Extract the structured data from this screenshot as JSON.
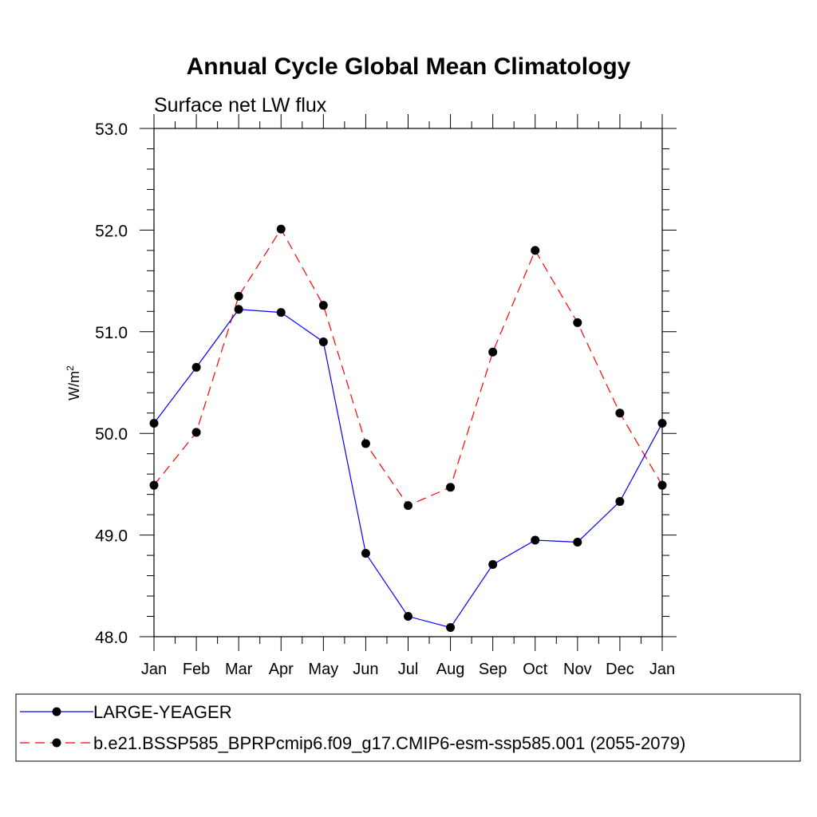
{
  "chart_data": {
    "type": "line",
    "title": "Annual Cycle Global Mean Climatology",
    "subtitle": "Surface net LW flux",
    "ylabel": "W/m",
    "ylabel_superscript": "2",
    "ylim": [
      48.0,
      53.0
    ],
    "yticks": [
      "48.0",
      "49.0",
      "50.0",
      "51.0",
      "52.0",
      "53.0"
    ],
    "categories": [
      "Jan",
      "Feb",
      "Mar",
      "Apr",
      "May",
      "Jun",
      "Jul",
      "Aug",
      "Sep",
      "Oct",
      "Nov",
      "Dec",
      "Jan"
    ],
    "series": [
      {
        "name": "LARGE-YEAGER",
        "color": "#0000ff",
        "dash": "solid",
        "values": [
          50.1,
          50.65,
          51.22,
          51.19,
          50.9,
          48.82,
          48.2,
          48.09,
          48.71,
          48.95,
          48.93,
          49.33,
          50.1
        ]
      },
      {
        "name": "b.e21.BSSP585_BPRPcmip6.f09_g17.CMIP6-esm-ssp585.001 (2055-2079)",
        "color": "#ff0000",
        "dash": "dashed",
        "values": [
          49.49,
          50.01,
          51.35,
          52.01,
          51.26,
          49.9,
          49.29,
          49.47,
          50.8,
          51.8,
          51.09,
          50.2,
          49.49
        ]
      }
    ],
    "legend_position": "bottom"
  }
}
